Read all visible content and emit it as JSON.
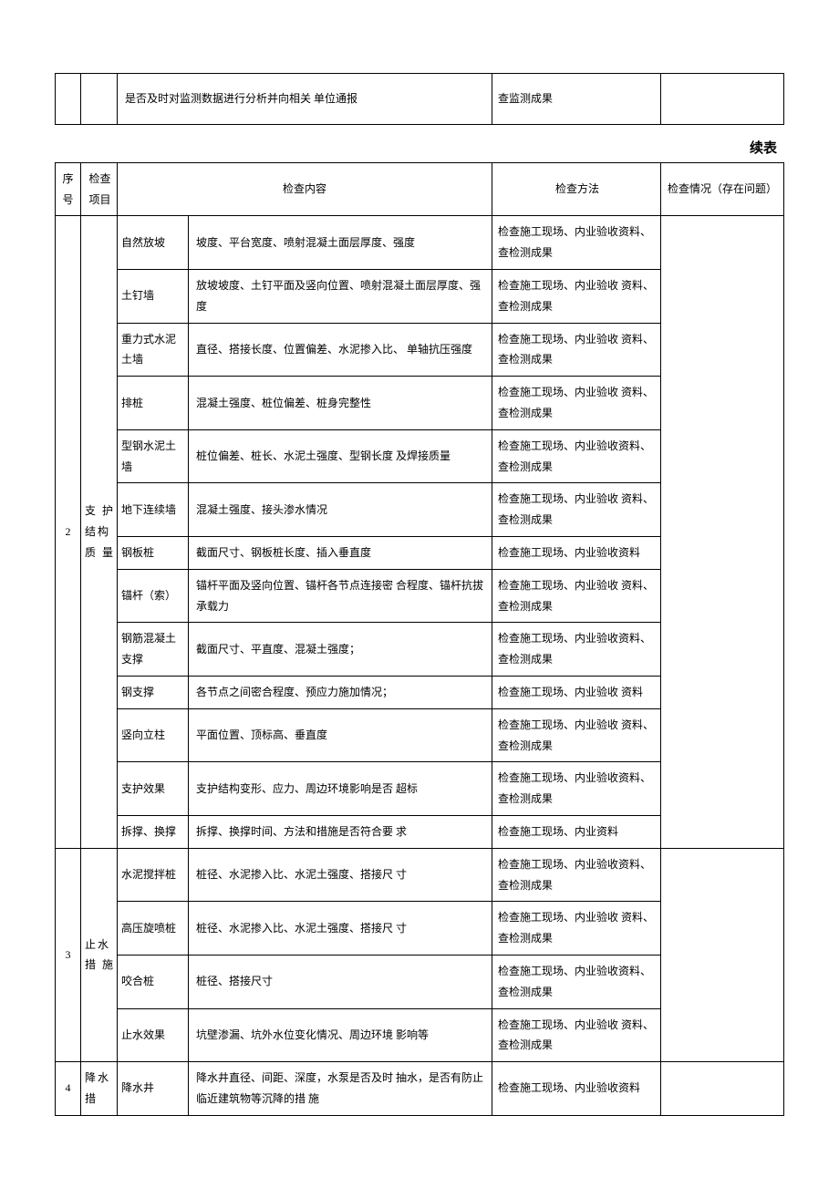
{
  "top_fragment": {
    "col_num": "",
    "col_item": "",
    "col_content": "是否及时对监测数据进行分析并向相关 单位通报",
    "col_method": "查监测成果",
    "col_issue": ""
  },
  "continuation_label": "续表",
  "headers": {
    "num": "序号",
    "item": "检查项目",
    "content": "检查内容",
    "method": "检查方法",
    "issue": "检查情况（存在问题）"
  },
  "sections": [
    {
      "num": "2",
      "item": "支 护 结构 质 量",
      "rows": [
        {
          "sub": "自然放坡",
          "content": "坡度、平台宽度、喷射混凝土面层厚度、强度",
          "method": "检查施工现场、内业验收资料、查检测成果"
        },
        {
          "sub": "土钉墙",
          "content": "放坡坡度、土钉平面及竖向位置、喷射混凝土面层厚度、强度",
          "method": "检查施工现场、内业验收 资料、查检测成果"
        },
        {
          "sub": "重力式水泥土墙",
          "content": " 直径、搭接长度、位置偏差、水泥掺入比、 单轴抗压强度",
          "method": "检查施工现场、内业验收 资料、查检测成果"
        },
        {
          "sub": "排桩",
          "content": "混凝土强度、桩位偏差、桩身完整性",
          "method": "检查施工现场、内业验收 资料、查检测成果"
        },
        {
          "sub": "型钢水泥土墙",
          "content": " 桩位偏差、桩长、水泥土强度、型钢长度 及焊接质量",
          "method": "检查施工现场、内业验收资料、查检测成果"
        },
        {
          "sub": "地下连续墙",
          "content": "混凝土强度、接头渗水情况",
          "method": "检查施工现场、内业验收 资料、查检测成果"
        },
        {
          "sub": "钢板桩",
          "content": "截面尺寸、钢板桩长度、插入垂直度",
          "method": "检查施工现场、内业验收资料"
        },
        {
          "sub": "锚杆（索）",
          "content": " 锚杆平面及竖向位置、锚杆各节点连接密 合程度、锚杆抗拔承载力",
          "method": "检查施工现场、内业验收 资料、查检测成果"
        },
        {
          "sub": "钢筋混凝土支撑",
          "content": "截面尺寸、平直度、混凝土强度；",
          "method": "检查施工现场、内业验收资料、查检测成果"
        },
        {
          "sub": "钢支撑",
          "content": "各节点之间密合程度、预应力施加情况；",
          "method": "检查施工现场、内业验收 资料"
        },
        {
          "sub": "竖向立柱",
          "content": "平面位置、顶标高、垂直度",
          "method": "检查施工现场、内业验收 资料、查检测成果"
        },
        {
          "sub": "支护效果",
          "content": " 支护结构变形、应力、周边环境影响是否 超标",
          "method": "检查施工现场、内业验收资料、查检测成果"
        },
        {
          "sub": "拆撑、换撑",
          "content": " 拆撑、换撑时间、方法和措施是否符合要 求",
          "method": "检查施工现场、内业资料"
        }
      ]
    },
    {
      "num": "3",
      "item": "止水 措 施",
      "rows": [
        {
          "sub": "水泥搅拌桩",
          "content": "桩径、水泥掺入比、水泥土强度、搭接尺 寸",
          "method": "检查施工现场、内业验收资料、查检测成果"
        },
        {
          "sub": "高压旋喷桩",
          "content": "桩径、水泥掺入比、水泥土强度、搭接尺 寸",
          "method": "检查施工现场、内业验收 资料、查检测成果"
        },
        {
          "sub": "咬合桩",
          "content": "桩径、搭接尺寸",
          "method": "检查施工现场、内业验收资料、查检测成果"
        },
        {
          "sub": "止水效果",
          "content": "坑壁渗漏、坑外水位变化情况、周边环境 影响等",
          "method": "检查施工现场、内业验收 资料、查检测成果"
        }
      ]
    },
    {
      "num": "4",
      "item": "降水措",
      "rows": [
        {
          "sub": "降水井",
          "content": " 降水井直径、间距、深度，水泵是否及时 抽水，是否有防止临近建筑物等沉降的措 施",
          "method": "检查施工现场、内业验收资料"
        }
      ]
    }
  ]
}
